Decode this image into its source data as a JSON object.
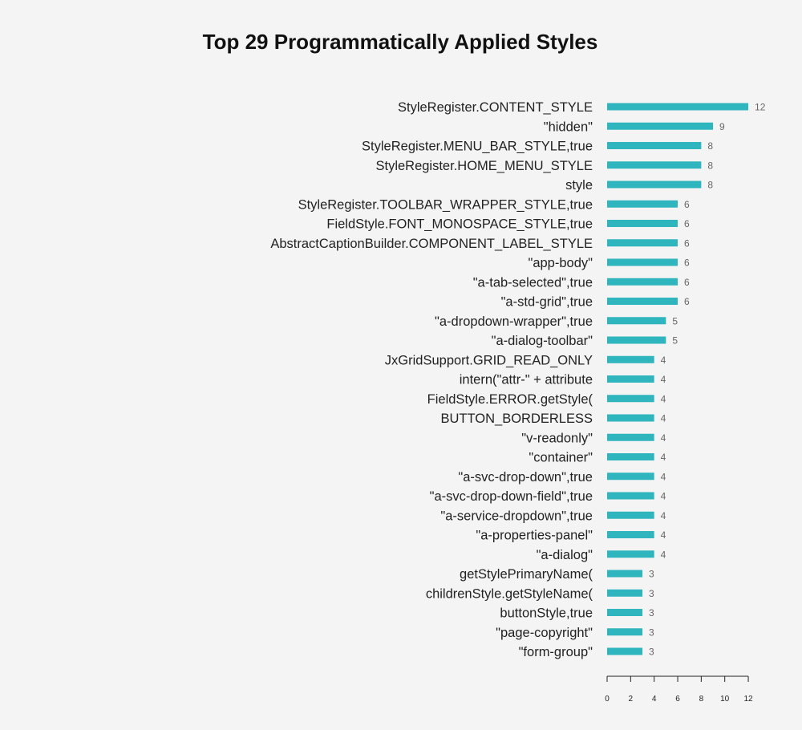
{
  "chart_data": {
    "type": "bar",
    "orientation": "horizontal",
    "title": "Top 29 Programmatically Applied Styles",
    "xlabel": "",
    "ylabel": "",
    "xlim": [
      0,
      12
    ],
    "xticks": [
      0,
      2,
      4,
      6,
      8,
      10,
      12
    ],
    "grid": false,
    "bar_color": "#2eb5bd",
    "categories": [
      "StyleRegister.CONTENT_STYLE",
      "\"hidden\"",
      "StyleRegister.MENU_BAR_STYLE,true",
      "StyleRegister.HOME_MENU_STYLE",
      "style",
      "StyleRegister.TOOLBAR_WRAPPER_STYLE,true",
      "FieldStyle.FONT_MONOSPACE_STYLE,true",
      "AbstractCaptionBuilder.COMPONENT_LABEL_STYLE",
      "\"app-body\"",
      "\"a-tab-selected\",true",
      "\"a-std-grid\",true",
      "\"a-dropdown-wrapper\",true",
      "\"a-dialog-toolbar\"",
      "JxGridSupport.GRID_READ_ONLY",
      "intern(\"attr-\" + attribute",
      "FieldStyle.ERROR.getStyle(",
      "BUTTON_BORDERLESS",
      "\"v-readonly\"",
      "\"container\"",
      "\"a-svc-drop-down\",true",
      "\"a-svc-drop-down-field\",true",
      "\"a-service-dropdown\",true",
      "\"a-properties-panel\"",
      "\"a-dialog\"",
      "getStylePrimaryName(",
      "childrenStyle.getStyleName(",
      "buttonStyle,true",
      "\"page-copyright\"",
      "\"form-group\""
    ],
    "values": [
      12,
      9,
      8,
      8,
      8,
      6,
      6,
      6,
      6,
      6,
      6,
      5,
      5,
      4,
      4,
      4,
      4,
      4,
      4,
      4,
      4,
      4,
      4,
      4,
      3,
      3,
      3,
      3,
      3
    ]
  }
}
